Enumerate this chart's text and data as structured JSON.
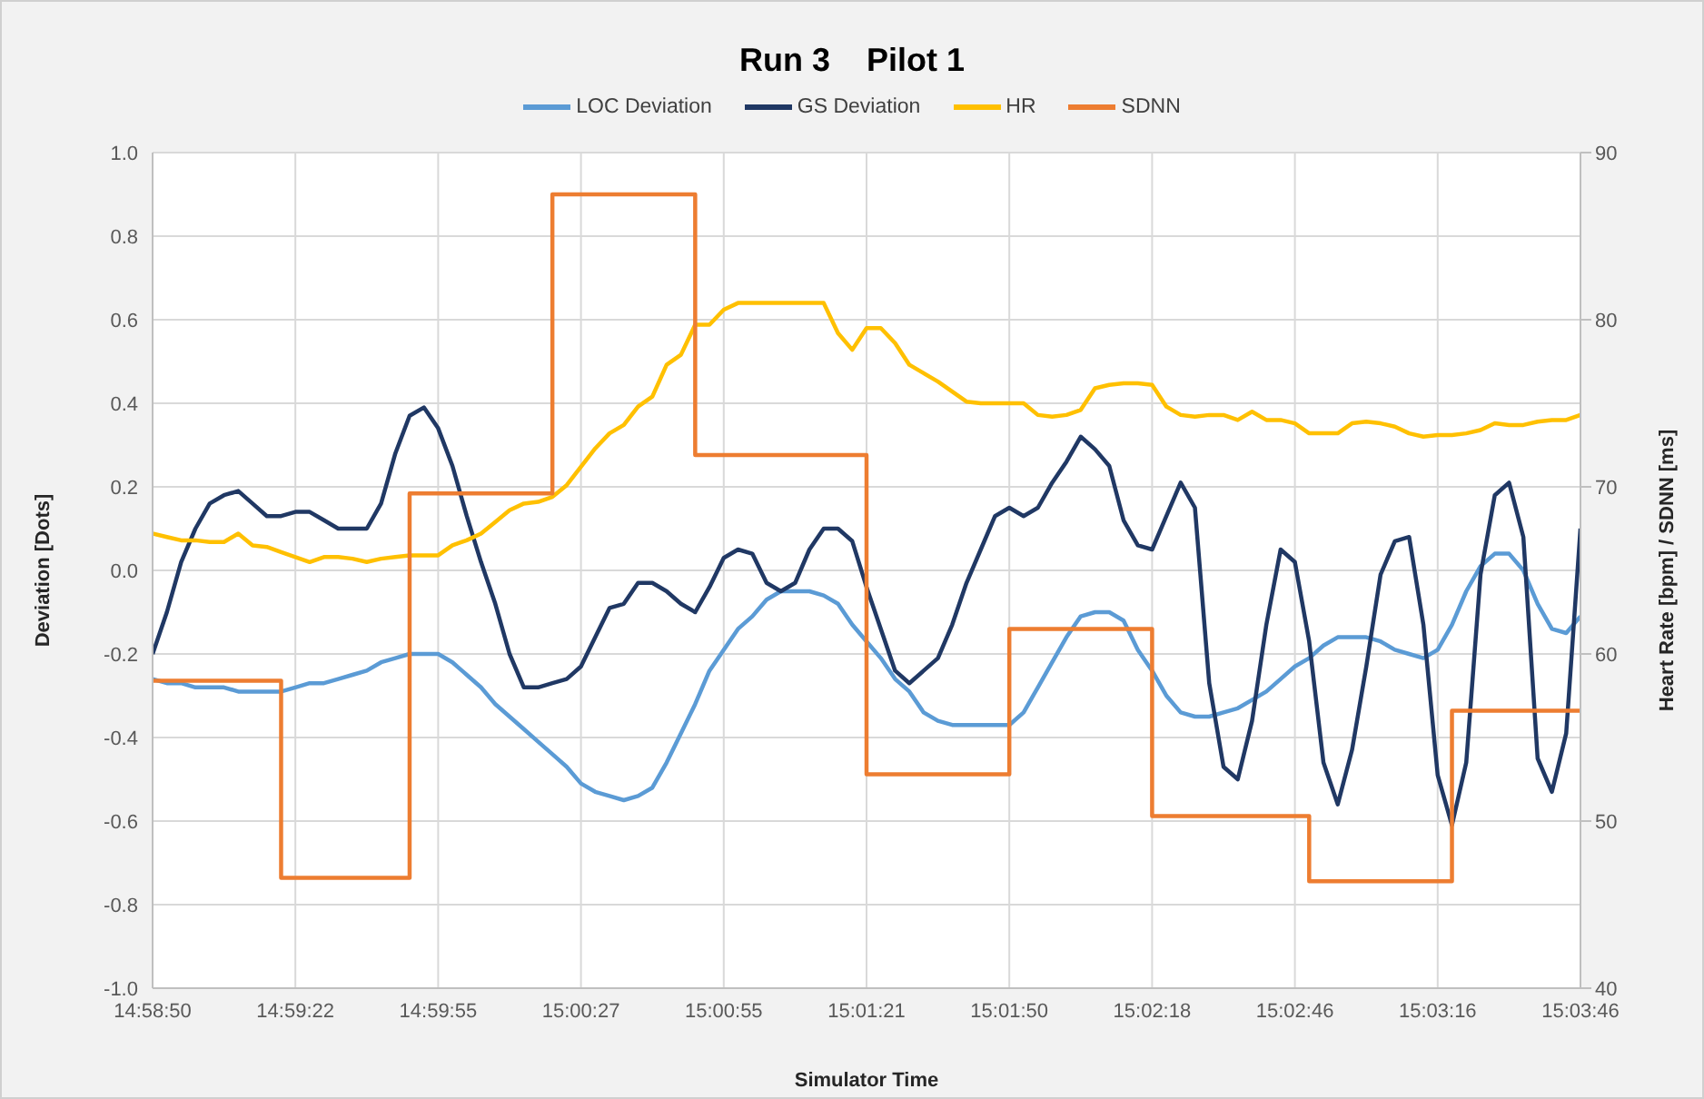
{
  "chart_data": {
    "type": "line",
    "title": "Run 3    Pilot 1",
    "xlabel": "Simulator Time",
    "ylabel": "Deviation [Dots]",
    "y2label": "Heart Rate [bpm] / SDNN [ms]",
    "categories": [
      "14:58:50",
      null,
      null,
      null,
      null,
      null,
      null,
      null,
      null,
      null,
      "14:59:22",
      null,
      null,
      null,
      null,
      null,
      null,
      null,
      null,
      null,
      "14:59:55",
      null,
      null,
      null,
      null,
      null,
      null,
      null,
      null,
      null,
      "15:00:27",
      null,
      null,
      null,
      null,
      null,
      null,
      null,
      null,
      null,
      "15:00:55",
      null,
      null,
      null,
      null,
      null,
      null,
      null,
      null,
      null,
      "15:01:21",
      null,
      null,
      null,
      null,
      null,
      null,
      null,
      null,
      null,
      "15:01:50",
      null,
      null,
      null,
      null,
      null,
      null,
      null,
      null,
      null,
      "15:02:18",
      null,
      null,
      null,
      null,
      null,
      null,
      null,
      null,
      null,
      "15:02:46",
      null,
      null,
      null,
      null,
      null,
      null,
      null,
      null,
      null,
      "15:03:16",
      null,
      null,
      null,
      null,
      null,
      null,
      null,
      null,
      null,
      "15:03:46"
    ],
    "series": [
      {
        "name": "LOC Deviation",
        "color": "#5b9bd5",
        "values": [
          -0.26,
          -0.27,
          -0.27,
          -0.28,
          -0.28,
          -0.28,
          -0.29,
          -0.29,
          -0.29,
          -0.29,
          -0.28,
          -0.27,
          -0.27,
          -0.26,
          -0.25,
          -0.24,
          -0.22,
          -0.21,
          -0.2,
          -0.2,
          -0.2,
          -0.22,
          -0.25,
          -0.28,
          -0.32,
          -0.35,
          -0.38,
          -0.41,
          -0.44,
          -0.47,
          -0.51,
          -0.53,
          -0.54,
          -0.55,
          -0.54,
          -0.52,
          -0.46,
          -0.39,
          -0.32,
          -0.24,
          -0.19,
          -0.14,
          -0.11,
          -0.07,
          -0.05,
          -0.05,
          -0.05,
          -0.06,
          -0.08,
          -0.13,
          -0.17,
          -0.21,
          -0.26,
          -0.29,
          -0.34,
          -0.36,
          -0.37,
          -0.37,
          -0.37,
          -0.37,
          -0.37,
          -0.34,
          -0.28,
          -0.22,
          -0.16,
          -0.11,
          -0.1,
          -0.1,
          -0.12,
          -0.19,
          -0.24,
          -0.3,
          -0.34,
          -0.35,
          -0.35,
          -0.34,
          -0.33,
          -0.31,
          -0.29,
          -0.26,
          -0.23,
          -0.21,
          -0.18,
          -0.16,
          -0.16,
          -0.16,
          -0.17,
          -0.19,
          -0.2,
          -0.21,
          -0.19,
          -0.13,
          -0.05,
          0.01,
          0.04,
          0.04,
          0.0,
          -0.08,
          -0.14,
          -0.15,
          -0.11
        ]
      },
      {
        "name": "GS Deviation",
        "color": "#203864",
        "values": [
          -0.2,
          -0.1,
          0.02,
          0.1,
          0.16,
          0.18,
          0.19,
          0.16,
          0.13,
          0.13,
          0.14,
          0.14,
          0.12,
          0.1,
          0.1,
          0.1,
          0.16,
          0.28,
          0.37,
          0.39,
          0.34,
          0.25,
          0.13,
          0.02,
          -0.08,
          -0.2,
          -0.28,
          -0.28,
          -0.27,
          -0.26,
          -0.23,
          -0.16,
          -0.09,
          -0.08,
          -0.03,
          -0.03,
          -0.05,
          -0.08,
          -0.1,
          -0.04,
          0.03,
          0.05,
          0.04,
          -0.03,
          -0.05,
          -0.03,
          0.05,
          0.1,
          0.1,
          0.07,
          -0.04,
          -0.14,
          -0.24,
          -0.27,
          -0.24,
          -0.21,
          -0.13,
          -0.03,
          0.05,
          0.13,
          0.15,
          0.13,
          0.15,
          0.21,
          0.26,
          0.32,
          0.29,
          0.25,
          0.12,
          0.06,
          0.05,
          0.13,
          0.21,
          0.15,
          -0.27,
          -0.47,
          -0.5,
          -0.36,
          -0.13,
          0.05,
          0.02,
          -0.17,
          -0.46,
          -0.56,
          -0.43,
          -0.23,
          -0.01,
          0.07,
          0.08,
          -0.13,
          -0.49,
          -0.61,
          -0.46,
          -0.01,
          0.18,
          0.21,
          0.08,
          -0.45,
          -0.53,
          -0.39,
          0.1
        ]
      },
      {
        "name": "HR",
        "color": "#ffc000",
        "axis": "y2",
        "values": [
          67.2,
          67.0,
          66.8,
          66.8,
          66.7,
          66.7,
          67.2,
          66.5,
          66.4,
          66.1,
          65.8,
          65.5,
          65.8,
          65.8,
          65.7,
          65.5,
          65.7,
          65.8,
          65.9,
          65.9,
          65.9,
          66.5,
          66.8,
          67.2,
          67.9,
          68.6,
          69.0,
          69.1,
          69.4,
          70.1,
          71.2,
          72.3,
          73.2,
          73.7,
          74.8,
          75.4,
          77.3,
          77.9,
          79.7,
          79.7,
          80.6,
          81.0,
          81.0,
          81.0,
          81.0,
          81.0,
          81.0,
          81.0,
          79.2,
          78.2,
          79.5,
          79.5,
          78.6,
          77.3,
          76.8,
          76.3,
          75.7,
          75.1,
          75.0,
          75.0,
          75.0,
          75.0,
          74.3,
          74.2,
          74.3,
          74.6,
          75.9,
          76.1,
          76.2,
          76.2,
          76.1,
          74.8,
          74.3,
          74.2,
          74.3,
          74.3,
          74.0,
          74.5,
          74.0,
          74.0,
          73.8,
          73.2,
          73.2,
          73.2,
          73.8,
          73.9,
          73.8,
          73.6,
          73.2,
          73.0,
          73.1,
          73.1,
          73.2,
          73.4,
          73.8,
          73.7,
          73.7,
          73.9,
          74.0,
          74.0,
          74.3
        ]
      },
      {
        "name": "SDNN",
        "color": "#ed7d31",
        "axis": "y2",
        "type": "step",
        "values": [
          58.4,
          58.4,
          58.4,
          58.4,
          58.4,
          58.4,
          58.4,
          58.4,
          58.4,
          46.6,
          46.6,
          46.6,
          46.6,
          46.6,
          46.6,
          46.6,
          46.6,
          46.6,
          69.6,
          69.6,
          69.6,
          69.6,
          69.6,
          69.6,
          69.6,
          69.6,
          69.6,
          69.6,
          87.5,
          87.5,
          87.5,
          87.5,
          87.5,
          87.5,
          87.5,
          87.5,
          87.5,
          87.5,
          71.9,
          71.9,
          71.9,
          71.9,
          71.9,
          71.9,
          71.9,
          71.9,
          71.9,
          71.9,
          71.9,
          71.9,
          52.8,
          52.8,
          52.8,
          52.8,
          52.8,
          52.8,
          52.8,
          52.8,
          52.8,
          52.8,
          61.5,
          61.5,
          61.5,
          61.5,
          61.5,
          61.5,
          61.5,
          61.5,
          61.5,
          61.5,
          50.3,
          50.3,
          50.3,
          50.3,
          50.3,
          50.3,
          50.3,
          50.3,
          50.3,
          50.3,
          50.3,
          46.4,
          46.4,
          46.4,
          46.4,
          46.4,
          46.4,
          46.4,
          46.4,
          46.4,
          46.4,
          56.6,
          56.6,
          56.6,
          56.6,
          56.6,
          56.6,
          56.6,
          56.6,
          56.6,
          56.6
        ]
      }
    ],
    "ylim": [
      -1,
      1
    ],
    "yticks": [
      {
        "value": -1,
        "label": "-1.0"
      },
      -0.8,
      -0.6,
      -0.4,
      -0.2,
      {
        "value": 0,
        "label": "0.0"
      },
      0.2,
      0.4,
      0.6,
      0.8,
      {
        "value": 1,
        "label": "1.0"
      }
    ],
    "y2lim": [
      40,
      90
    ],
    "y2ticks": [
      40,
      50,
      60,
      70,
      80,
      90
    ],
    "grid": true,
    "legend": "top",
    "marker": "none",
    "line_style": "solid"
  }
}
